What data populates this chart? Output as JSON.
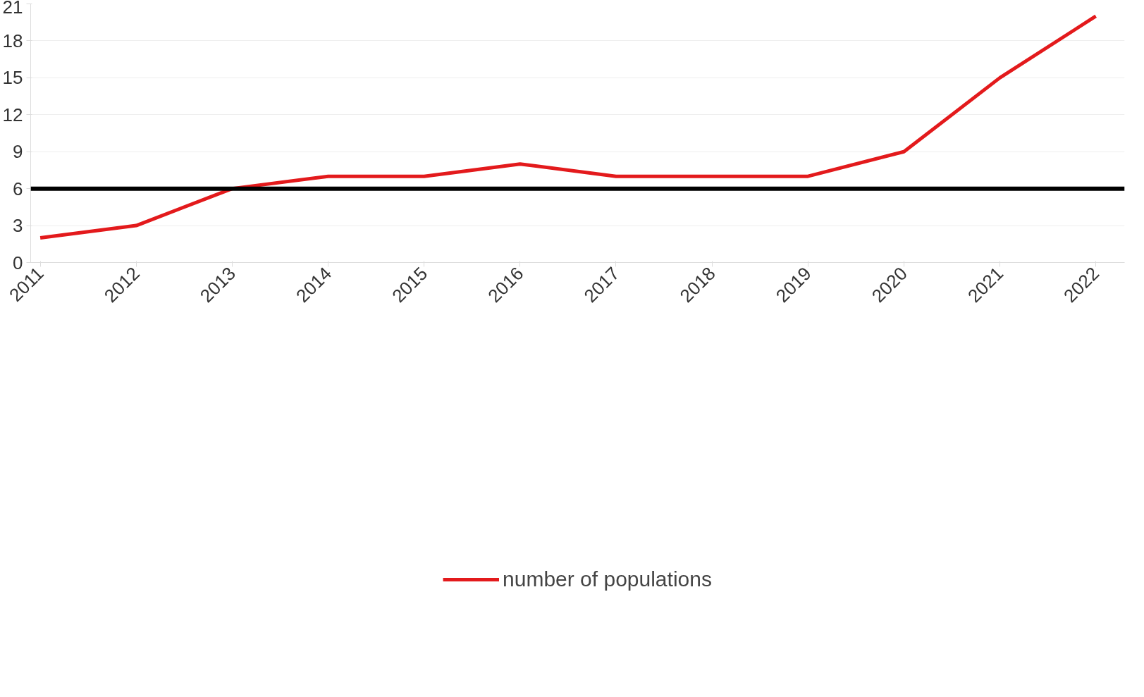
{
  "chart_data": {
    "type": "line",
    "categories": [
      "2011",
      "2012",
      "2013",
      "2014",
      "2015",
      "2016",
      "2017",
      "2018",
      "2019",
      "2020",
      "2021",
      "2022"
    ],
    "series": [
      {
        "name": "number of populations",
        "color": "#e31a1c",
        "values": [
          2,
          3,
          6,
          7,
          7,
          8,
          7,
          7,
          7,
          9,
          15,
          20
        ]
      }
    ],
    "ylim": [
      0,
      21
    ],
    "yticks": [
      0,
      3,
      6,
      9,
      12,
      15,
      18,
      21
    ],
    "ref_lines": [
      {
        "axis": "y",
        "value": 6,
        "color": "#000000"
      }
    ],
    "grid": "y",
    "legend": "bottom",
    "marker": "none",
    "line_style": "solid"
  }
}
